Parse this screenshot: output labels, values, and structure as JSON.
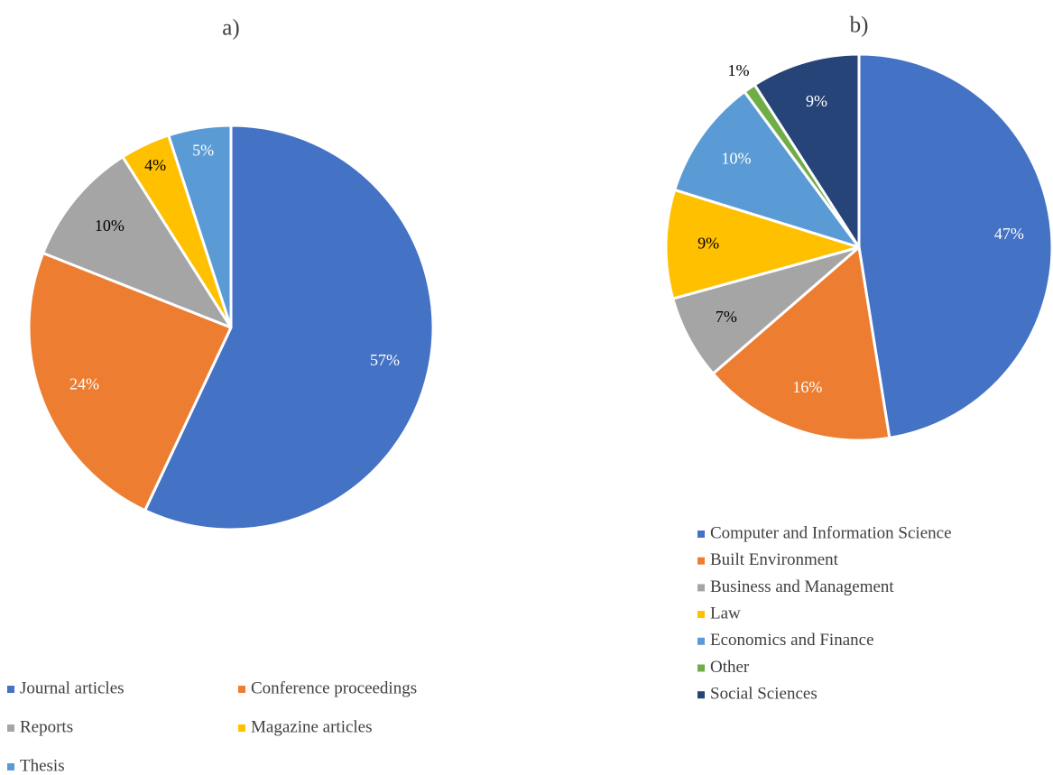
{
  "chart_data": [
    {
      "type": "pie",
      "title": "a)",
      "categories": [
        "Journal articles",
        "Conference proceedings",
        "Reports",
        "Magazine articles",
        "Thesis"
      ],
      "values": [
        57,
        24,
        10,
        4,
        5
      ],
      "value_labels": [
        "57%",
        "24%",
        "10%",
        "4%",
        "5%"
      ],
      "colors": [
        "#4472c4",
        "#ed7d31",
        "#a5a5a5",
        "#ffc000",
        "#5b9bd5"
      ]
    },
    {
      "type": "pie",
      "title": "b)",
      "categories": [
        "Computer and Information Science",
        "Built Environment",
        "Business and Management",
        "Law",
        "Economics and Finance",
        "Other",
        "Social Sciences"
      ],
      "values": [
        47,
        16,
        7,
        9,
        10,
        1,
        9
      ],
      "value_labels": [
        "47%",
        "16%",
        "7%",
        "9%",
        "10%",
        "1%",
        "9%"
      ],
      "colors": [
        "#4472c4",
        "#ed7d31",
        "#a5a5a5",
        "#ffc000",
        "#5b9bd5",
        "#70ad47",
        "#264478"
      ]
    }
  ]
}
